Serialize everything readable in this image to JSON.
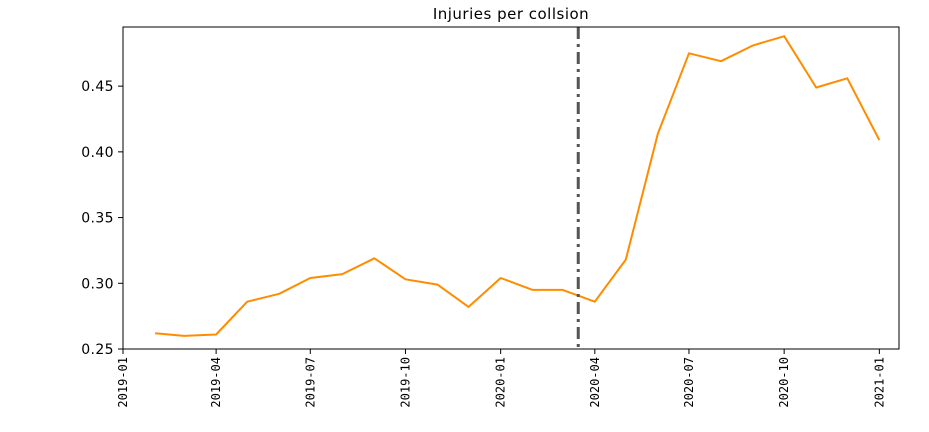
{
  "chart_data": {
    "type": "line",
    "title": "Injuries per collsion",
    "xlabel": "",
    "ylabel": "",
    "grid": false,
    "x_axis_type": "date",
    "xlim": [
      "2019-01-01",
      "2021-01-20"
    ],
    "ylim": [
      0.25,
      0.495
    ],
    "x_ticks": [
      "2019-01",
      "2019-04",
      "2019-07",
      "2019-10",
      "2020-01",
      "2020-04",
      "2020-07",
      "2020-10",
      "2021-01"
    ],
    "y_ticks": [
      "0.25",
      "0.30",
      "0.35",
      "0.40",
      "0.45"
    ],
    "series": [
      {
        "color": "#ff8c00",
        "x": [
          "2019-02-01",
          "2019-03-01",
          "2019-04-01",
          "2019-05-01",
          "2019-06-01",
          "2019-07-01",
          "2019-08-01",
          "2019-09-01",
          "2019-10-01",
          "2019-11-01",
          "2019-12-01",
          "2020-01-01",
          "2020-02-01",
          "2020-03-01",
          "2020-04-01",
          "2020-05-01",
          "2020-06-01",
          "2020-07-01",
          "2020-08-01",
          "2020-09-01",
          "2020-10-01",
          "2020-11-01",
          "2020-12-01",
          "2021-01-01"
        ],
        "y": [
          0.262,
          0.26,
          0.261,
          0.286,
          0.292,
          0.304,
          0.307,
          0.319,
          0.303,
          0.299,
          0.282,
          0.304,
          0.295,
          0.295,
          0.286,
          0.318,
          0.414,
          0.475,
          0.469,
          0.481,
          0.488,
          0.449,
          0.456,
          0.409
        ]
      }
    ],
    "vline": {
      "x": "2020-03-16",
      "color": "#555555",
      "style": "dashdot"
    }
  }
}
